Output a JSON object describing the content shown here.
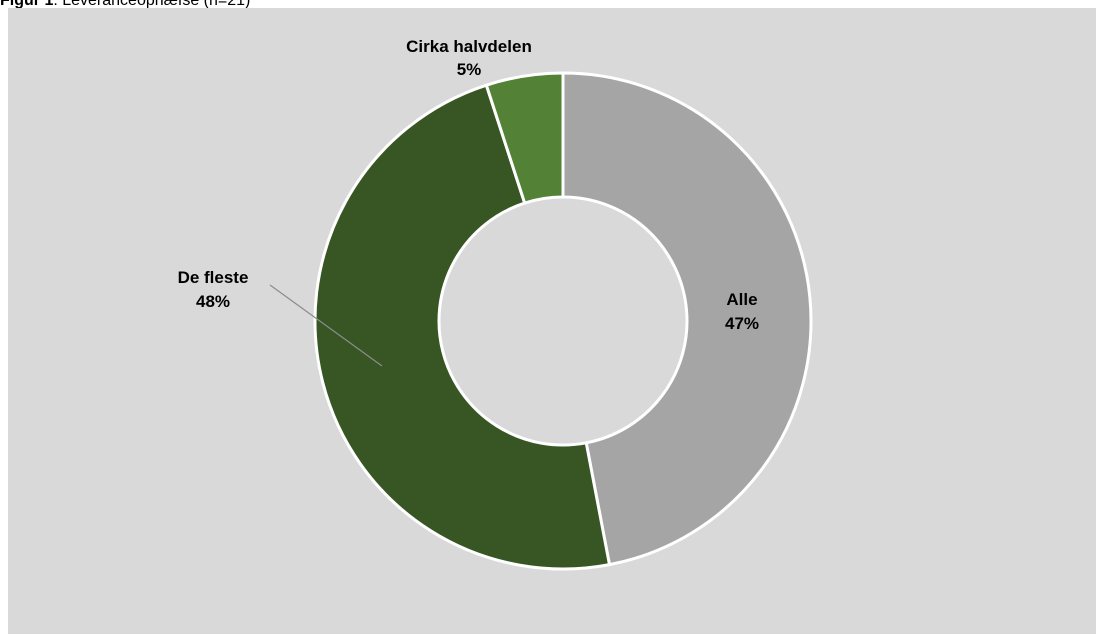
{
  "figure": {
    "caption_prefix": "Figur 1",
    "caption_text": ". Leveranceophæfse (n=21)"
  },
  "chart_data": {
    "type": "pie",
    "donut": true,
    "title": "",
    "categories": [
      "Alle",
      "De fleste",
      "Cirka halvdelen"
    ],
    "values": [
      47,
      48,
      5
    ],
    "labels": [
      {
        "name": "Alle",
        "value_text": "47%"
      },
      {
        "name": "De fleste",
        "value_text": "48%"
      },
      {
        "name": "Cirka halvdelen",
        "value_text": "5%"
      }
    ],
    "colors": [
      "#a5a5a5",
      "#375623",
      "#538135"
    ],
    "background": "#d9d9d9",
    "legend": "none",
    "start_angle": "top, clockwise"
  }
}
